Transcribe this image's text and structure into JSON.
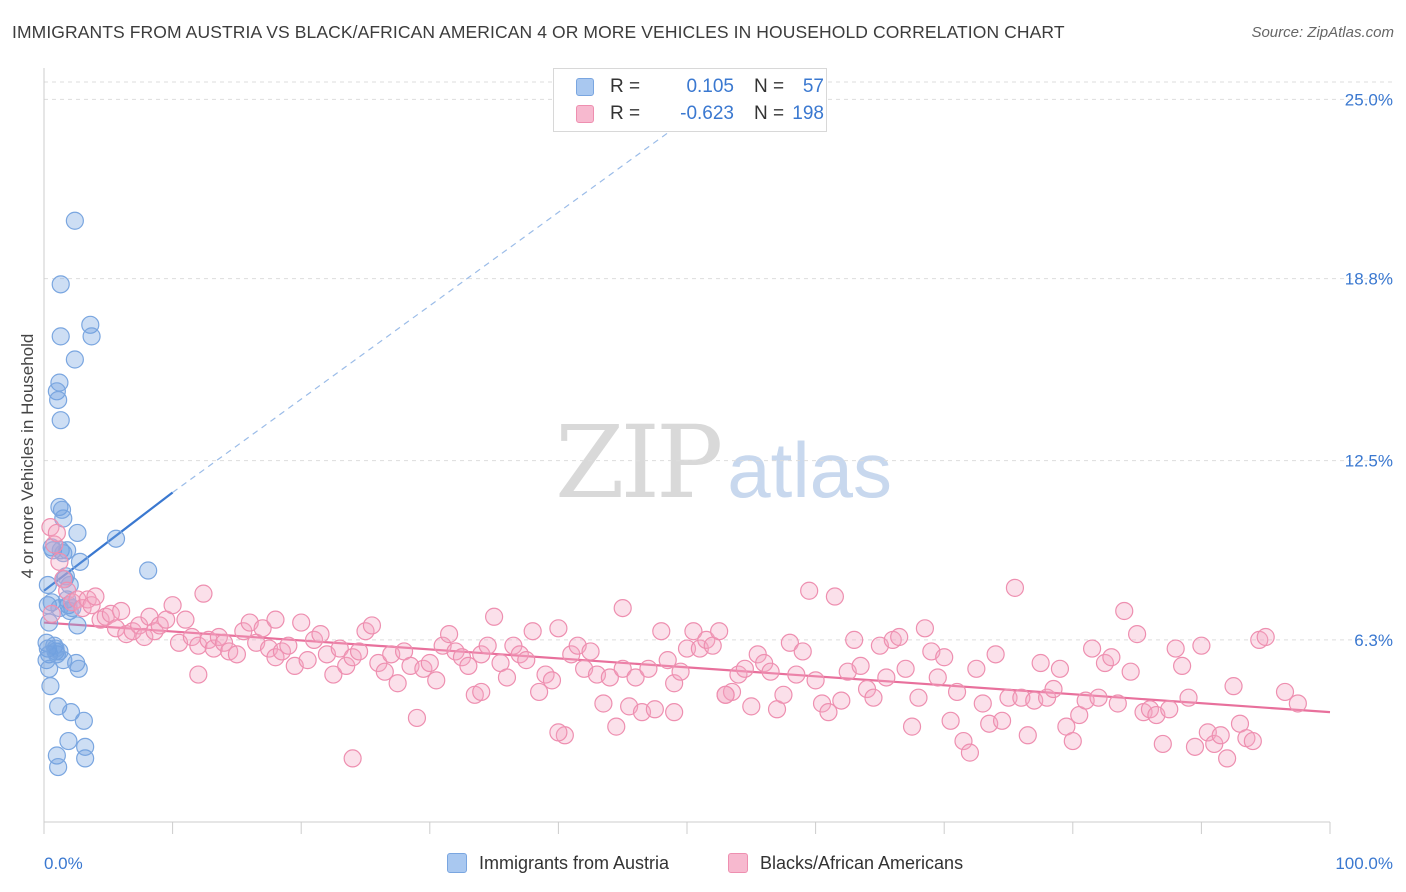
{
  "title": "IMMIGRANTS FROM AUSTRIA VS BLACK/AFRICAN AMERICAN 4 OR MORE VEHICLES IN HOUSEHOLD CORRELATION CHART",
  "source": "Source: ZipAtlas.com",
  "watermark": {
    "zip": "ZIP",
    "atlas": "atlas"
  },
  "legend": {
    "r_label": "R =",
    "n_label": "N =",
    "rows": [
      {
        "name": "Immigrants from Austria",
        "r": "0.105",
        "n": "57",
        "color": "#a9c8f0",
        "border": "#7aa6e0"
      },
      {
        "name": "Blacks/African Americans",
        "r": "-0.623",
        "n": "198",
        "color": "#f7b9cf",
        "border": "#ee8fb0"
      }
    ]
  },
  "chart_data": {
    "type": "scatter",
    "title": "IMMIGRANTS FROM AUSTRIA VS BLACK/AFRICAN AMERICAN 4 OR MORE VEHICLES IN HOUSEHOLD CORRELATION CHART",
    "xlabel": "",
    "ylabel": "4 or more Vehicles in Household",
    "xlim": [
      0,
      100
    ],
    "ylim": [
      0,
      25.6
    ],
    "x_tick_labels": [
      "0.0%",
      "100.0%"
    ],
    "y_ticks": [
      6.3,
      12.5,
      18.8,
      25.0
    ],
    "y_tick_labels": [
      "6.3%",
      "12.5%",
      "18.8%",
      "25.0%"
    ],
    "grid": "horizontal dashed",
    "legend_position": "top-center",
    "series": [
      {
        "name": "Immigrants from Austria",
        "color": "#6fa0e0",
        "trend": {
          "x0": 0,
          "y0": 8.0,
          "x1": 10,
          "y1": 11.4,
          "dashed_to_x": 49,
          "dashed_to_y": 24.0,
          "color": "#3a78d0"
        },
        "points": [
          [
            0.3,
            8.2
          ],
          [
            0.3,
            7.5
          ],
          [
            0.4,
            6.9
          ],
          [
            0.2,
            6.2
          ],
          [
            0.3,
            6.0
          ],
          [
            0.4,
            5.8
          ],
          [
            0.2,
            5.6
          ],
          [
            0.4,
            5.3
          ],
          [
            0.5,
            4.7
          ],
          [
            0.6,
            9.5
          ],
          [
            0.7,
            9.4
          ],
          [
            0.6,
            7.6
          ],
          [
            0.8,
            6.1
          ],
          [
            0.9,
            5.9
          ],
          [
            1.0,
            5.8
          ],
          [
            1.2,
            5.9
          ],
          [
            1.0,
            2.3
          ],
          [
            1.1,
            1.9
          ],
          [
            1.1,
            4.0
          ],
          [
            1.3,
            18.6
          ],
          [
            1.2,
            15.2
          ],
          [
            1.0,
            14.9
          ],
          [
            1.1,
            14.6
          ],
          [
            1.3,
            13.9
          ],
          [
            1.3,
            16.8
          ],
          [
            1.2,
            10.9
          ],
          [
            1.5,
            10.5
          ],
          [
            1.4,
            10.8
          ],
          [
            1.3,
            9.4
          ],
          [
            1.5,
            9.3
          ],
          [
            1.6,
            8.4
          ],
          [
            1.7,
            8.5
          ],
          [
            1.8,
            9.4
          ],
          [
            1.9,
            7.5
          ],
          [
            1.8,
            7.7
          ],
          [
            2.0,
            7.3
          ],
          [
            1.9,
            2.8
          ],
          [
            2.1,
            3.8
          ],
          [
            2.2,
            7.4
          ],
          [
            2.4,
            20.8
          ],
          [
            2.4,
            16.0
          ],
          [
            2.5,
            5.5
          ],
          [
            2.6,
            10.0
          ],
          [
            2.6,
            6.8
          ],
          [
            2.7,
            5.3
          ],
          [
            2.8,
            9.0
          ],
          [
            3.1,
            3.5
          ],
          [
            3.2,
            2.2
          ],
          [
            3.2,
            2.6
          ],
          [
            3.6,
            17.2
          ],
          [
            3.7,
            16.8
          ],
          [
            5.6,
            9.8
          ],
          [
            8.1,
            8.7
          ],
          [
            1.5,
            5.6
          ],
          [
            0.9,
            6.0
          ],
          [
            2.0,
            8.2
          ],
          [
            1.2,
            7.4
          ]
        ]
      },
      {
        "name": "Blacks/African Americans",
        "color": "#f4a6c2",
        "trend": {
          "x0": 0,
          "y0": 6.9,
          "x1": 100,
          "y1": 3.8,
          "color": "#e8709c"
        },
        "points": [
          [
            0.5,
            10.2
          ],
          [
            0.8,
            9.6
          ],
          [
            1.0,
            10.0
          ],
          [
            1.2,
            9.0
          ],
          [
            1.5,
            8.4
          ],
          [
            1.8,
            8.0
          ],
          [
            2.2,
            7.6
          ],
          [
            0.6,
            7.2
          ],
          [
            2.6,
            7.7
          ],
          [
            3.0,
            7.4
          ],
          [
            3.4,
            7.7
          ],
          [
            3.7,
            7.5
          ],
          [
            4.0,
            7.8
          ],
          [
            4.4,
            7.0
          ],
          [
            4.8,
            7.1
          ],
          [
            5.2,
            7.2
          ],
          [
            5.6,
            6.7
          ],
          [
            6.0,
            7.3
          ],
          [
            6.4,
            6.5
          ],
          [
            6.9,
            6.6
          ],
          [
            7.4,
            6.8
          ],
          [
            7.8,
            6.4
          ],
          [
            8.2,
            7.1
          ],
          [
            8.6,
            6.6
          ],
          [
            9.0,
            6.8
          ],
          [
            9.5,
            7.0
          ],
          [
            10.0,
            7.5
          ],
          [
            10.5,
            6.2
          ],
          [
            11.0,
            7.0
          ],
          [
            11.5,
            6.4
          ],
          [
            12.0,
            6.1
          ],
          [
            12.4,
            7.9
          ],
          [
            12.8,
            6.3
          ],
          [
            13.2,
            6.0
          ],
          [
            13.6,
            6.4
          ],
          [
            14.0,
            6.2
          ],
          [
            14.4,
            5.9
          ],
          [
            15.0,
            5.8
          ],
          [
            15.5,
            6.6
          ],
          [
            16.0,
            6.9
          ],
          [
            16.5,
            6.2
          ],
          [
            17.0,
            6.7
          ],
          [
            17.5,
            6.0
          ],
          [
            18.0,
            5.7
          ],
          [
            18.5,
            5.9
          ],
          [
            19.0,
            6.1
          ],
          [
            19.5,
            5.4
          ],
          [
            20.0,
            6.9
          ],
          [
            20.5,
            5.6
          ],
          [
            21.0,
            6.3
          ],
          [
            21.5,
            6.5
          ],
          [
            22.0,
            5.8
          ],
          [
            22.5,
            5.1
          ],
          [
            23.0,
            6.0
          ],
          [
            23.5,
            5.4
          ],
          [
            24.0,
            5.7
          ],
          [
            24.5,
            5.9
          ],
          [
            25.0,
            6.6
          ],
          [
            25.5,
            6.8
          ],
          [
            26.0,
            5.5
          ],
          [
            26.5,
            5.2
          ],
          [
            27.0,
            5.8
          ],
          [
            27.5,
            4.8
          ],
          [
            28.0,
            5.9
          ],
          [
            28.5,
            5.4
          ],
          [
            29.0,
            3.6
          ],
          [
            29.5,
            5.3
          ],
          [
            30.0,
            5.5
          ],
          [
            30.5,
            4.9
          ],
          [
            31.0,
            6.1
          ],
          [
            31.5,
            6.5
          ],
          [
            32.0,
            5.9
          ],
          [
            32.5,
            5.7
          ],
          [
            33.0,
            5.4
          ],
          [
            33.5,
            4.4
          ],
          [
            34.0,
            5.8
          ],
          [
            34.5,
            6.1
          ],
          [
            35.0,
            7.1
          ],
          [
            35.5,
            5.5
          ],
          [
            36.0,
            5.0
          ],
          [
            36.5,
            6.1
          ],
          [
            37.0,
            5.8
          ],
          [
            37.5,
            5.6
          ],
          [
            38.0,
            6.6
          ],
          [
            38.5,
            4.5
          ],
          [
            39.0,
            5.1
          ],
          [
            39.5,
            4.9
          ],
          [
            40.0,
            6.7
          ],
          [
            40.5,
            3.0
          ],
          [
            41.0,
            5.8
          ],
          [
            41.5,
            6.1
          ],
          [
            42.0,
            5.3
          ],
          [
            42.5,
            5.9
          ],
          [
            43.0,
            5.1
          ],
          [
            43.5,
            4.1
          ],
          [
            44.0,
            5.0
          ],
          [
            44.5,
            3.3
          ],
          [
            45.0,
            5.3
          ],
          [
            45.5,
            4.0
          ],
          [
            46.0,
            5.0
          ],
          [
            46.5,
            3.8
          ],
          [
            47.0,
            5.3
          ],
          [
            47.5,
            3.9
          ],
          [
            48.0,
            6.6
          ],
          [
            48.5,
            5.6
          ],
          [
            49.0,
            4.8
          ],
          [
            49.5,
            5.2
          ],
          [
            50.0,
            6.0
          ],
          [
            50.5,
            6.6
          ],
          [
            51.0,
            6.0
          ],
          [
            51.5,
            6.3
          ],
          [
            52.0,
            6.1
          ],
          [
            52.5,
            6.6
          ],
          [
            53.0,
            4.4
          ],
          [
            53.5,
            4.5
          ],
          [
            54.0,
            5.1
          ],
          [
            54.5,
            5.3
          ],
          [
            55.0,
            4.0
          ],
          [
            55.5,
            5.8
          ],
          [
            56.0,
            5.5
          ],
          [
            56.5,
            5.2
          ],
          [
            57.0,
            3.9
          ],
          [
            57.5,
            4.4
          ],
          [
            58.0,
            6.2
          ],
          [
            58.5,
            5.1
          ],
          [
            59.0,
            5.9
          ],
          [
            59.5,
            8.0
          ],
          [
            60.0,
            4.9
          ],
          [
            60.5,
            4.1
          ],
          [
            61.0,
            3.8
          ],
          [
            61.5,
            7.8
          ],
          [
            62.0,
            4.2
          ],
          [
            62.5,
            5.2
          ],
          [
            63.0,
            6.3
          ],
          [
            63.5,
            5.4
          ],
          [
            64.0,
            4.6
          ],
          [
            64.5,
            4.3
          ],
          [
            65.0,
            6.1
          ],
          [
            65.5,
            5.0
          ],
          [
            66.0,
            6.3
          ],
          [
            66.5,
            6.4
          ],
          [
            67.0,
            5.3
          ],
          [
            67.5,
            3.3
          ],
          [
            68.0,
            4.3
          ],
          [
            68.5,
            6.7
          ],
          [
            69.0,
            5.9
          ],
          [
            69.5,
            5.0
          ],
          [
            70.0,
            5.7
          ],
          [
            70.5,
            3.5
          ],
          [
            71.0,
            4.5
          ],
          [
            71.5,
            2.8
          ],
          [
            72.0,
            2.4
          ],
          [
            72.5,
            5.3
          ],
          [
            73.0,
            4.1
          ],
          [
            73.5,
            3.4
          ],
          [
            74.0,
            5.8
          ],
          [
            74.5,
            3.5
          ],
          [
            75.0,
            4.3
          ],
          [
            75.5,
            8.1
          ],
          [
            76.0,
            4.3
          ],
          [
            76.5,
            3.0
          ],
          [
            77.0,
            4.2
          ],
          [
            77.5,
            5.5
          ],
          [
            78.0,
            4.3
          ],
          [
            78.5,
            4.6
          ],
          [
            79.0,
            5.3
          ],
          [
            79.5,
            3.3
          ],
          [
            80.0,
            2.8
          ],
          [
            80.5,
            3.7
          ],
          [
            81.0,
            4.2
          ],
          [
            81.5,
            6.0
          ],
          [
            82.0,
            4.3
          ],
          [
            82.5,
            5.5
          ],
          [
            83.0,
            5.7
          ],
          [
            83.5,
            4.1
          ],
          [
            84.0,
            7.3
          ],
          [
            84.5,
            5.2
          ],
          [
            85.0,
            6.5
          ],
          [
            85.5,
            3.8
          ],
          [
            86.0,
            3.9
          ],
          [
            86.5,
            3.7
          ],
          [
            87.0,
            2.7
          ],
          [
            87.5,
            3.9
          ],
          [
            88.0,
            6.0
          ],
          [
            88.5,
            5.4
          ],
          [
            89.0,
            4.3
          ],
          [
            89.5,
            2.6
          ],
          [
            90.0,
            6.1
          ],
          [
            90.5,
            3.1
          ],
          [
            91.0,
            2.7
          ],
          [
            91.5,
            3.0
          ],
          [
            92.0,
            2.2
          ],
          [
            92.5,
            4.7
          ],
          [
            93.0,
            3.4
          ],
          [
            93.5,
            2.9
          ],
          [
            94.0,
            2.8
          ],
          [
            94.5,
            6.3
          ],
          [
            95.0,
            6.4
          ],
          [
            96.5,
            4.5
          ],
          [
            97.5,
            4.1
          ],
          [
            12.0,
            5.1
          ],
          [
            18.0,
            7.0
          ],
          [
            24.0,
            2.2
          ],
          [
            34.0,
            4.5
          ],
          [
            40.0,
            3.1
          ],
          [
            45.0,
            7.4
          ],
          [
            49.0,
            3.8
          ],
          [
            53.0,
            4.4
          ]
        ]
      }
    ]
  }
}
